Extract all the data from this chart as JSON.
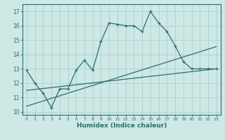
{
  "xlabel": "Humidex (Indice chaleur)",
  "xlim": [
    -0.5,
    23.5
  ],
  "ylim": [
    9.8,
    17.5
  ],
  "yticks": [
    10,
    11,
    12,
    13,
    14,
    15,
    16,
    17
  ],
  "xticks": [
    0,
    1,
    2,
    3,
    4,
    5,
    6,
    7,
    8,
    9,
    10,
    11,
    12,
    13,
    14,
    15,
    16,
    17,
    18,
    19,
    20,
    21,
    22,
    23
  ],
  "bg_color": "#cde8e5",
  "grid_color": "#b0d4d0",
  "line_color": "#2d6e6e",
  "line1_x": [
    0,
    1,
    2,
    3,
    4,
    5,
    6,
    7,
    8,
    9,
    10,
    11,
    12,
    13,
    14,
    15,
    16,
    17,
    18,
    19,
    20,
    21,
    22,
    23
  ],
  "line1_y": [
    12.9,
    12.0,
    11.3,
    10.3,
    11.6,
    11.6,
    12.9,
    13.6,
    12.9,
    14.9,
    16.2,
    16.1,
    16.0,
    16.0,
    15.6,
    17.0,
    16.2,
    15.6,
    14.6,
    13.5,
    13.0,
    13.0,
    13.0,
    13.0
  ],
  "line2_x": [
    0,
    23
  ],
  "line2_y": [
    11.5,
    13.0
  ],
  "line3_x": [
    0,
    23
  ],
  "line3_y": [
    10.4,
    14.55
  ],
  "tick_fontsize": 5.0,
  "xlabel_fontsize": 6.5
}
